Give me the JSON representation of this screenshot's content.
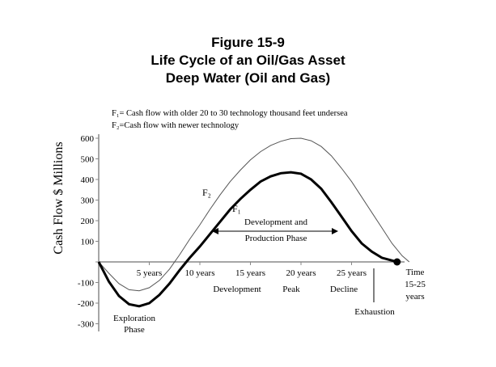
{
  "figure": {
    "title_line1": "Figure 15-9",
    "title_line2": "Life Cycle of an Oil/Gas Asset",
    "title_line3": "Deep Water (Oil and Gas)"
  },
  "chart_data": {
    "type": "line",
    "title": "Life Cycle of an Oil/Gas Asset Deep Water (Oil and Gas)",
    "ylabel": "Cash Flow $ Millions",
    "xlabel": "Time 15-25 years",
    "xlim": [
      0,
      30.7
    ],
    "ylim": [
      -300,
      600
    ],
    "y_ticks": [
      -300,
      -200,
      -100,
      0,
      100,
      200,
      300,
      400,
      500,
      600
    ],
    "y_tick_labels": [
      "-300",
      "-200",
      "-100",
      "0",
      "100",
      "200",
      "300",
      "400",
      "500",
      "600"
    ],
    "x_ticks": [
      5,
      10,
      15,
      20,
      25
    ],
    "x_tick_labels": [
      "5 years",
      "10 years",
      "15 years",
      "20 years",
      "25 years"
    ],
    "x_end_label_line1": "Time",
    "x_end_label_line2": "15-25",
    "x_end_label_line3": "years",
    "phase_labels": {
      "development": "Development",
      "peak": "Peak",
      "decline": "Decline",
      "exhaustion": "Exhaustion",
      "exploration_line1": "Exploration",
      "exploration_line2": "Phase",
      "dev_prod_line1": "Development and",
      "dev_prod_line2": "Production Phase"
    },
    "legend": {
      "f1": "F₁= Cash flow with older 20 to 30 technology thousand feet undersea",
      "f2": "F₂=Cash flow with newer technology"
    },
    "series": [
      {
        "name": "F₁",
        "color": "#000000",
        "x": [
          0,
          1,
          2,
          3,
          4,
          5,
          6,
          7,
          8,
          9,
          10,
          11,
          12,
          13,
          14,
          15,
          16,
          17,
          18,
          19,
          20,
          21,
          22,
          23,
          24,
          25,
          26,
          27,
          28,
          29.5
        ],
        "y": [
          0,
          -95,
          -165,
          -205,
          -215,
          -200,
          -160,
          -105,
          -40,
          20,
          75,
          135,
          195,
          255,
          305,
          350,
          390,
          415,
          430,
          435,
          428,
          400,
          355,
          290,
          220,
          150,
          90,
          50,
          20,
          0
        ]
      },
      {
        "name": "F₂",
        "color": "#555555",
        "x": [
          0,
          1,
          2,
          3,
          4,
          5,
          6,
          7,
          8,
          9,
          10,
          11,
          12,
          13,
          14,
          15,
          16,
          17,
          18,
          19,
          20,
          21,
          22,
          23,
          24,
          25,
          26,
          27,
          28,
          29,
          30,
          30.7
        ],
        "y": [
          0,
          -55,
          -105,
          -135,
          -140,
          -125,
          -90,
          -35,
          35,
          110,
          180,
          255,
          325,
          390,
          445,
          495,
          535,
          565,
          585,
          598,
          600,
          588,
          560,
          515,
          455,
          390,
          315,
          240,
          165,
          90,
          30,
          0
        ]
      }
    ],
    "exhaustion_marker": {
      "x": 29.5,
      "y": 0
    }
  }
}
